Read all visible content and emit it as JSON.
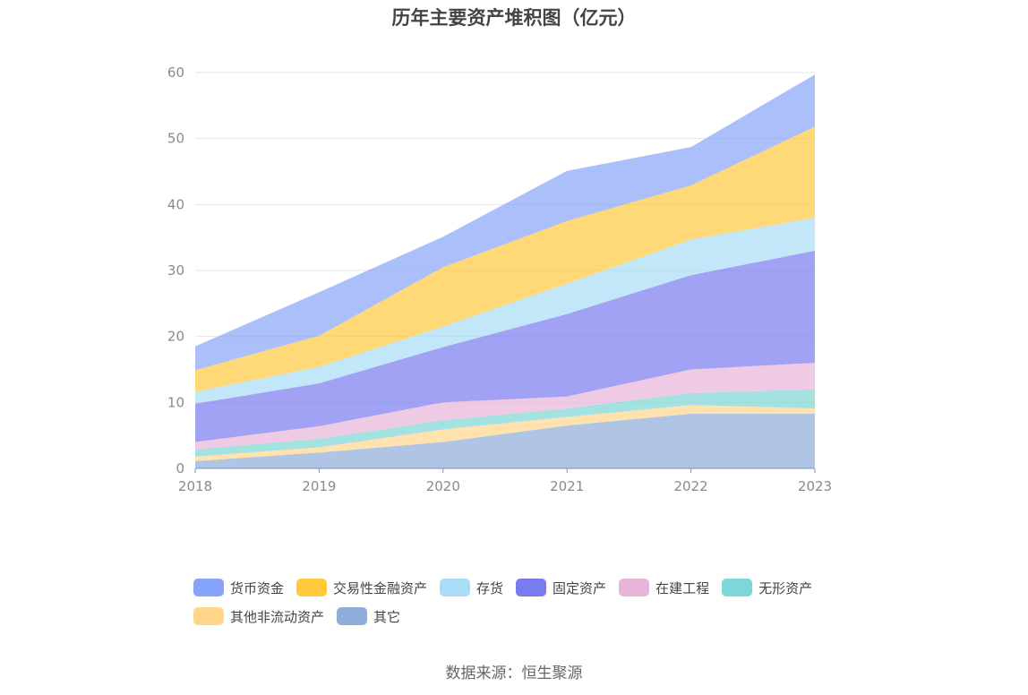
{
  "chart_data": {
    "type": "area",
    "stacked": true,
    "title": "历年主要资产堆积图（亿元）",
    "x": [
      "2018",
      "2019",
      "2020",
      "2021",
      "2022",
      "2023"
    ],
    "ylim": [
      0,
      60
    ],
    "yticks": [
      0,
      10,
      20,
      30,
      40,
      50,
      60
    ],
    "grid": true,
    "legend_position": "bottom",
    "series": [
      {
        "name": "其它",
        "color": "#8EADD9",
        "values": [
          1.1,
          2.4,
          4.0,
          6.5,
          8.3,
          8.3
        ]
      },
      {
        "name": "其他非流动资产",
        "color": "#FFD68C",
        "values": [
          0.7,
          0.8,
          1.9,
          1.3,
          1.3,
          0.8
        ]
      },
      {
        "name": "无形资产",
        "color": "#7ED6D6",
        "values": [
          1.1,
          1.3,
          1.4,
          1.3,
          1.8,
          2.9
        ]
      },
      {
        "name": "在建工程",
        "color": "#E8B4D8",
        "values": [
          1.1,
          1.9,
          2.7,
          1.8,
          3.6,
          4.0
        ]
      },
      {
        "name": "固定资产",
        "color": "#7B7BF0",
        "values": [
          5.8,
          6.5,
          8.4,
          12.5,
          14.3,
          17.0
        ]
      },
      {
        "name": "存货",
        "color": "#A8DDF5",
        "values": [
          1.8,
          2.5,
          3.1,
          4.6,
          5.4,
          5.0
        ]
      },
      {
        "name": "交易性金融资产",
        "color": "#FFC83D",
        "values": [
          3.3,
          4.7,
          9.0,
          9.5,
          8.2,
          13.8
        ]
      },
      {
        "name": "货币资金",
        "color": "#87A4FA",
        "values": [
          3.6,
          6.6,
          4.6,
          7.6,
          5.8,
          7.9
        ]
      }
    ]
  },
  "legend": {
    "row1": [
      {
        "label": "货币资金",
        "color": "#87A4FA"
      },
      {
        "label": "交易性金融资产",
        "color": "#FFC83D"
      },
      {
        "label": "存货",
        "color": "#A8DDF5"
      },
      {
        "label": "固定资产",
        "color": "#7B7BF0"
      },
      {
        "label": "在建工程",
        "color": "#E8B4D8"
      },
      {
        "label": "无形资产",
        "color": "#7ED6D6"
      }
    ],
    "row2": [
      {
        "label": "其他非流动资产",
        "color": "#FFD68C"
      },
      {
        "label": "其它",
        "color": "#8EADD9"
      }
    ]
  },
  "source": "数据来源：恒生聚源"
}
